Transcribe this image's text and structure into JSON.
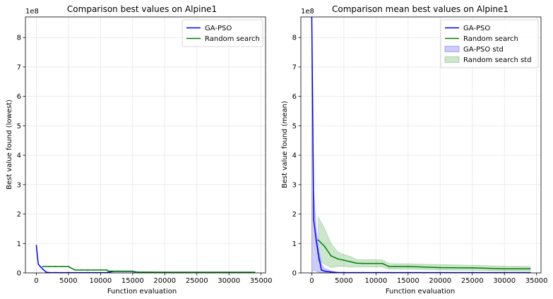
{
  "chart_data": [
    {
      "type": "line",
      "title": "Comparison best values on Alpine1",
      "xlabel": "Function evaluation",
      "ylabel": "Best value found (lowest)",
      "offset_label": "1e8",
      "xlim": [
        -1700,
        35700
      ],
      "ylim": [
        0,
        8.7
      ],
      "xticks": [
        0,
        5000,
        10000,
        15000,
        20000,
        25000,
        30000,
        35000
      ],
      "yticks": [
        0,
        1,
        2,
        3,
        4,
        5,
        6,
        7,
        8
      ],
      "grid": true,
      "legend": "top-right",
      "series": [
        {
          "name": "GA-PSO",
          "color": "#0000ff",
          "x": [
            0,
            300,
            600,
            1000,
            1500,
            2000,
            3000,
            5000,
            8000,
            11000,
            12000,
            15000,
            16000,
            20000,
            25000,
            30000,
            34000
          ],
          "y": [
            0.93,
            0.3,
            0.22,
            0.13,
            0.03,
            0.01,
            0.01,
            0.01,
            0.01,
            0.01,
            0.05,
            0.05,
            0.02,
            0.02,
            0.02,
            0.02,
            0.02
          ]
        },
        {
          "name": "Random search",
          "color": "#008000",
          "x": [
            1000,
            2000,
            3000,
            4000,
            5000,
            5200,
            6000,
            7000,
            8000,
            9000,
            10000,
            11000,
            11200,
            13000,
            15000,
            15200,
            20000,
            25000,
            30000,
            34000
          ],
          "y": [
            0.22,
            0.22,
            0.22,
            0.22,
            0.22,
            0.19,
            0.1,
            0.1,
            0.1,
            0.1,
            0.1,
            0.1,
            0.06,
            0.06,
            0.06,
            0.03,
            0.02,
            0.02,
            0.02,
            0.02
          ]
        }
      ]
    },
    {
      "type": "line",
      "title": "Comparison mean best values on Alpine1",
      "xlabel": "Function evaluation",
      "ylabel": "Best value found (mean)",
      "offset_label": "1e8",
      "xlim": [
        -1700,
        35700
      ],
      "ylim": [
        0,
        8.7
      ],
      "xticks": [
        0,
        5000,
        10000,
        15000,
        20000,
        25000,
        30000,
        35000
      ],
      "yticks": [
        0,
        1,
        2,
        3,
        4,
        5,
        6,
        7,
        8
      ],
      "grid": true,
      "legend": "top-right",
      "series": [
        {
          "name": "GA-PSO",
          "color": "#0000ff",
          "x": [
            0,
            300,
            700,
            1000,
            1500,
            2000,
            3000,
            4000,
            5000,
            8000,
            12000,
            15000,
            20000,
            25000,
            30000,
            34000
          ],
          "y": [
            8.7,
            1.8,
            1.1,
            0.65,
            0.1,
            0.06,
            0.03,
            0.01,
            0.01,
            0.01,
            0.01,
            0.01,
            0.01,
            0.01,
            0.01,
            0.01
          ],
          "upper": [
            8.7,
            2.8,
            1.5,
            0.9,
            0.3,
            0.15,
            0.06,
            0.03,
            0.02,
            0.02,
            0.02,
            0.02,
            0.02,
            0.02,
            0.02,
            0.02
          ],
          "lower": [
            0,
            0.1,
            0.05,
            0.03,
            0.01,
            0.01,
            0.0,
            0.0,
            0.0,
            0.0,
            0.0,
            0.0,
            0.0,
            0.0,
            0.0,
            0.0
          ]
        },
        {
          "name": "Random search",
          "color": "#008000",
          "x": [
            1000,
            2000,
            3000,
            4000,
            5000,
            6000,
            7000,
            8000,
            9000,
            10000,
            11000,
            12000,
            13000,
            15000,
            20000,
            25000,
            30000,
            34000
          ],
          "y": [
            1.12,
            0.9,
            0.58,
            0.48,
            0.43,
            0.38,
            0.33,
            0.32,
            0.32,
            0.32,
            0.32,
            0.22,
            0.22,
            0.22,
            0.18,
            0.17,
            0.14,
            0.14
          ],
          "upper": [
            1.9,
            1.5,
            1.0,
            0.72,
            0.62,
            0.56,
            0.45,
            0.45,
            0.45,
            0.45,
            0.44,
            0.32,
            0.31,
            0.31,
            0.28,
            0.26,
            0.23,
            0.22
          ],
          "lower": [
            0.4,
            0.3,
            0.18,
            0.22,
            0.22,
            0.2,
            0.2,
            0.2,
            0.2,
            0.2,
            0.2,
            0.13,
            0.13,
            0.13,
            0.1,
            0.09,
            0.07,
            0.07
          ]
        }
      ],
      "bands": [
        {
          "name": "GA-PSO std",
          "series": 0,
          "color": "#0000ff"
        },
        {
          "name": "Random search std",
          "series": 1,
          "color": "#008000"
        }
      ]
    }
  ]
}
